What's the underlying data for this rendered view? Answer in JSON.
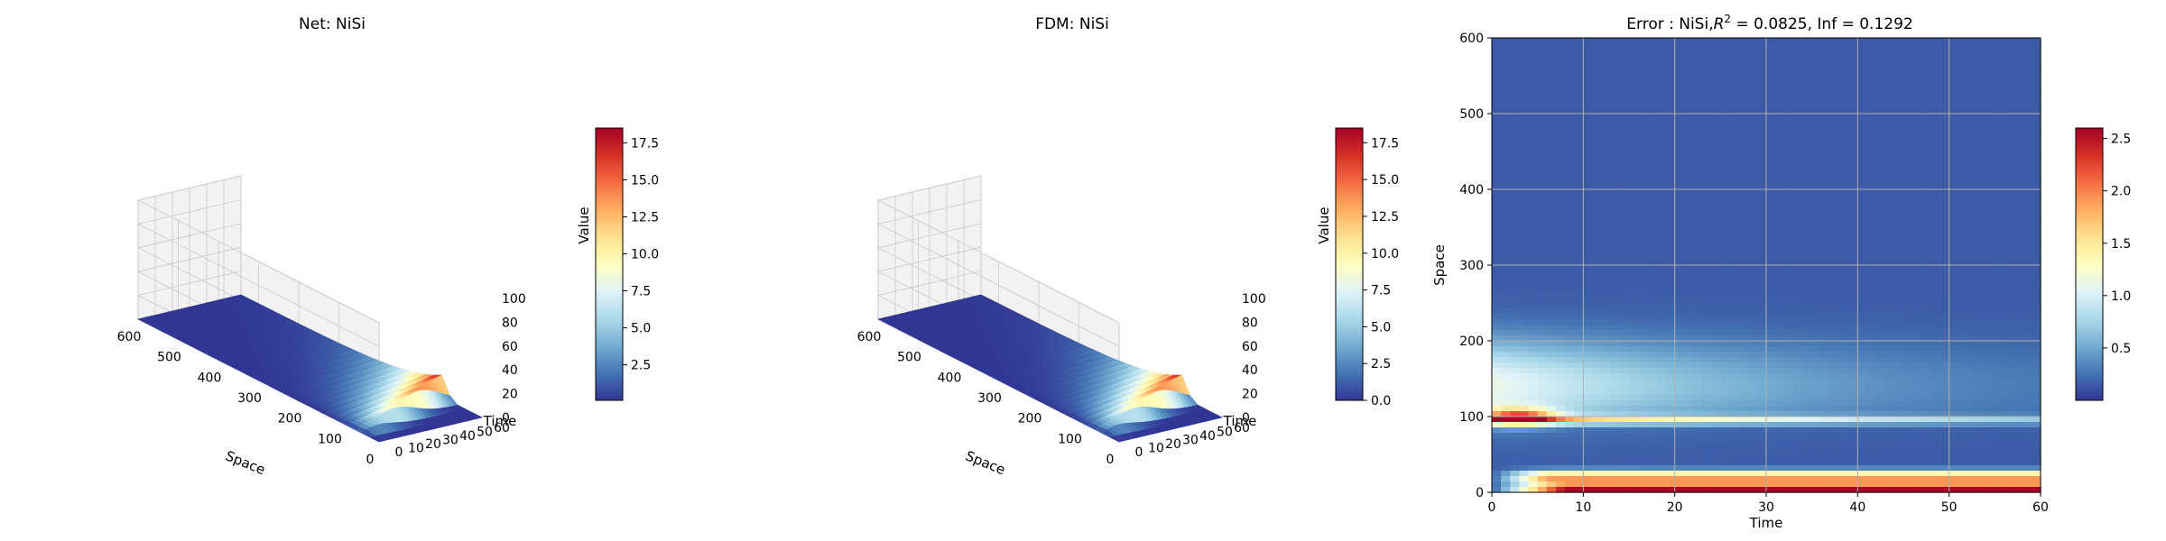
{
  "chart_data": [
    {
      "type": "surface",
      "title": "Net: NiSi",
      "xlabel": "Space",
      "ylabel": "Time",
      "zlabel": "",
      "x_ticks": [
        "0",
        "100",
        "200",
        "300",
        "400",
        "500",
        "600"
      ],
      "y_ticks": [
        "0",
        "10",
        "20",
        "30",
        "40",
        "50",
        "60"
      ],
      "z_ticks": [
        "0",
        "20",
        "40",
        "60",
        "80",
        "100"
      ],
      "xlim": [
        0,
        600
      ],
      "ylim": [
        0,
        60
      ],
      "zlim": [
        0,
        100
      ],
      "peak_value": 18.5,
      "colorbar": {
        "label": "Value",
        "ticks": [
          "2.5",
          "5.0",
          "7.5",
          "10.0",
          "12.5",
          "15.0",
          "17.5"
        ],
        "range": [
          0.1,
          18.5
        ]
      },
      "colormap": "RdYlBu_r"
    },
    {
      "type": "surface",
      "title": "FDM: NiSi",
      "xlabel": "Space",
      "ylabel": "Time",
      "zlabel": "",
      "x_ticks": [
        "0",
        "100",
        "200",
        "300",
        "400",
        "500",
        "600"
      ],
      "y_ticks": [
        "0",
        "10",
        "20",
        "30",
        "40",
        "50",
        "60"
      ],
      "z_ticks": [
        "0",
        "20",
        "40",
        "60",
        "80",
        "100"
      ],
      "xlim": [
        0,
        600
      ],
      "ylim": [
        0,
        60
      ],
      "zlim": [
        0,
        100
      ],
      "peak_value": 18.5,
      "colorbar": {
        "label": "Value",
        "ticks": [
          "0.0",
          "2.5",
          "5.0",
          "7.5",
          "10.0",
          "12.5",
          "15.0",
          "17.5"
        ],
        "range": [
          0,
          18.5
        ]
      },
      "colormap": "RdYlBu_r"
    },
    {
      "type": "heatmap",
      "title": "Error : NiSi,R² = 0.0825, Inf = 0.1292",
      "title_parts": {
        "prefix": "Error : NiSi,",
        "r": "R",
        "sup": "2",
        "suffix": " = 0.0825, Inf = 0.1292"
      },
      "xlabel": "Time",
      "ylabel": "Space",
      "x_ticks": [
        "0",
        "10",
        "20",
        "30",
        "40",
        "50",
        "60"
      ],
      "y_ticks": [
        "0",
        "100",
        "200",
        "300",
        "400",
        "500",
        "600"
      ],
      "xlim": [
        0,
        60
      ],
      "ylim": [
        600,
        0
      ],
      "grid": true,
      "colorbar": {
        "ticks": [
          "0.5",
          "1.0",
          "1.5",
          "2.0",
          "2.5"
        ],
        "range": [
          0,
          2.6
        ]
      },
      "colormap": "RdYlBu_r"
    }
  ],
  "colors": {
    "cmap_stops": [
      "#313695",
      "#4575b4",
      "#74add1",
      "#abd9e9",
      "#e0f3f8",
      "#ffffbf",
      "#fee090",
      "#fdae61",
      "#f46d43",
      "#d73027",
      "#a50026"
    ],
    "pane": "#f2f2f2",
    "grid": "#c8c8c8"
  }
}
